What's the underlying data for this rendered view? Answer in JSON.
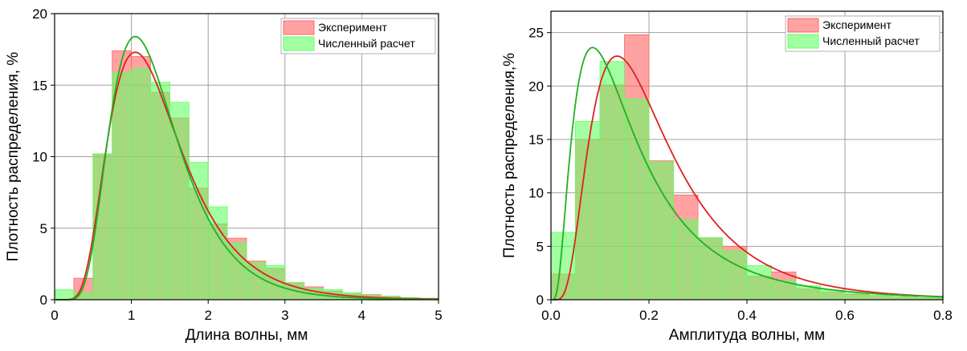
{
  "chart_data": [
    {
      "type": "bar",
      "bin_width": 0.25,
      "bin_start": 0.0,
      "xlabel": "Длина волны, мм",
      "ylabel": "Плотность распределения, %",
      "xlim": [
        0,
        5
      ],
      "ylim": [
        0,
        20
      ],
      "xticks": [
        "0",
        "1",
        "2",
        "3",
        "4",
        "5"
      ],
      "yticks": [
        "0",
        "5",
        "10",
        "15",
        "20"
      ],
      "grid": true,
      "legend_position": "top-right",
      "series": [
        {
          "name": "Эксперимент",
          "color": "#ff6464",
          "values": [
            0.0,
            1.5,
            10.2,
            17.4,
            17.0,
            14.5,
            12.7,
            7.8,
            5.3,
            4.3,
            2.7,
            2.2,
            1.2,
            0.9,
            0.6,
            0.4,
            0.35,
            0.25,
            0.15,
            0.1
          ]
        },
        {
          "name": "Численный расчет",
          "color": "#64ff64",
          "values": [
            0.7,
            0.5,
            10.2,
            15.9,
            16.2,
            15.2,
            13.8,
            9.6,
            6.5,
            4.0,
            2.6,
            2.4,
            1.2,
            0.8,
            0.7,
            0.5,
            0.3,
            0.25,
            0.15,
            0.1
          ]
        }
      ],
      "curves": [
        {
          "color": "#e02020",
          "type": "lognormal",
          "mode": 1.05,
          "sigma": 0.45,
          "peak": 17.3
        },
        {
          "color": "#20b020",
          "type": "lognormal",
          "mode": 1.05,
          "sigma": 0.42,
          "peak": 18.4
        }
      ]
    },
    {
      "type": "bar",
      "bin_width": 0.05,
      "bin_start": 0.0,
      "xlabel": "Амплитуда волны, мм",
      "ylabel": "Плотность распределения,%",
      "xlim": [
        0,
        0.8
      ],
      "ylim": [
        0,
        27
      ],
      "xticks": [
        "0.0",
        "0.2",
        "0.4",
        "0.6",
        "0.8"
      ],
      "yticks": [
        "0",
        "5",
        "10",
        "15",
        "20",
        "25"
      ],
      "grid": true,
      "legend_position": "top-right",
      "series": [
        {
          "name": "Эксперимент",
          "color": "#ff6464",
          "values": [
            2.4,
            15.0,
            20.1,
            24.8,
            13.0,
            9.8,
            5.8,
            5.0,
            2.2,
            2.6,
            1.0,
            0.7,
            0.5,
            0.4,
            0.3,
            0.2
          ]
        },
        {
          "name": "Численный расчет",
          "color": "#64ff64",
          "values": [
            6.3,
            16.7,
            22.3,
            18.8,
            12.9,
            7.5,
            5.8,
            4.6,
            3.2,
            1.8,
            1.3,
            0.9,
            0.6,
            0.4,
            0.3,
            0.2
          ]
        }
      ],
      "curves": [
        {
          "color": "#e02020",
          "type": "lognormal",
          "mode": 0.135,
          "sigma": 0.6,
          "peak": 22.8
        },
        {
          "color": "#20b020",
          "type": "lognormal",
          "mode": 0.085,
          "sigma": 0.75,
          "peak": 23.6
        }
      ]
    }
  ]
}
